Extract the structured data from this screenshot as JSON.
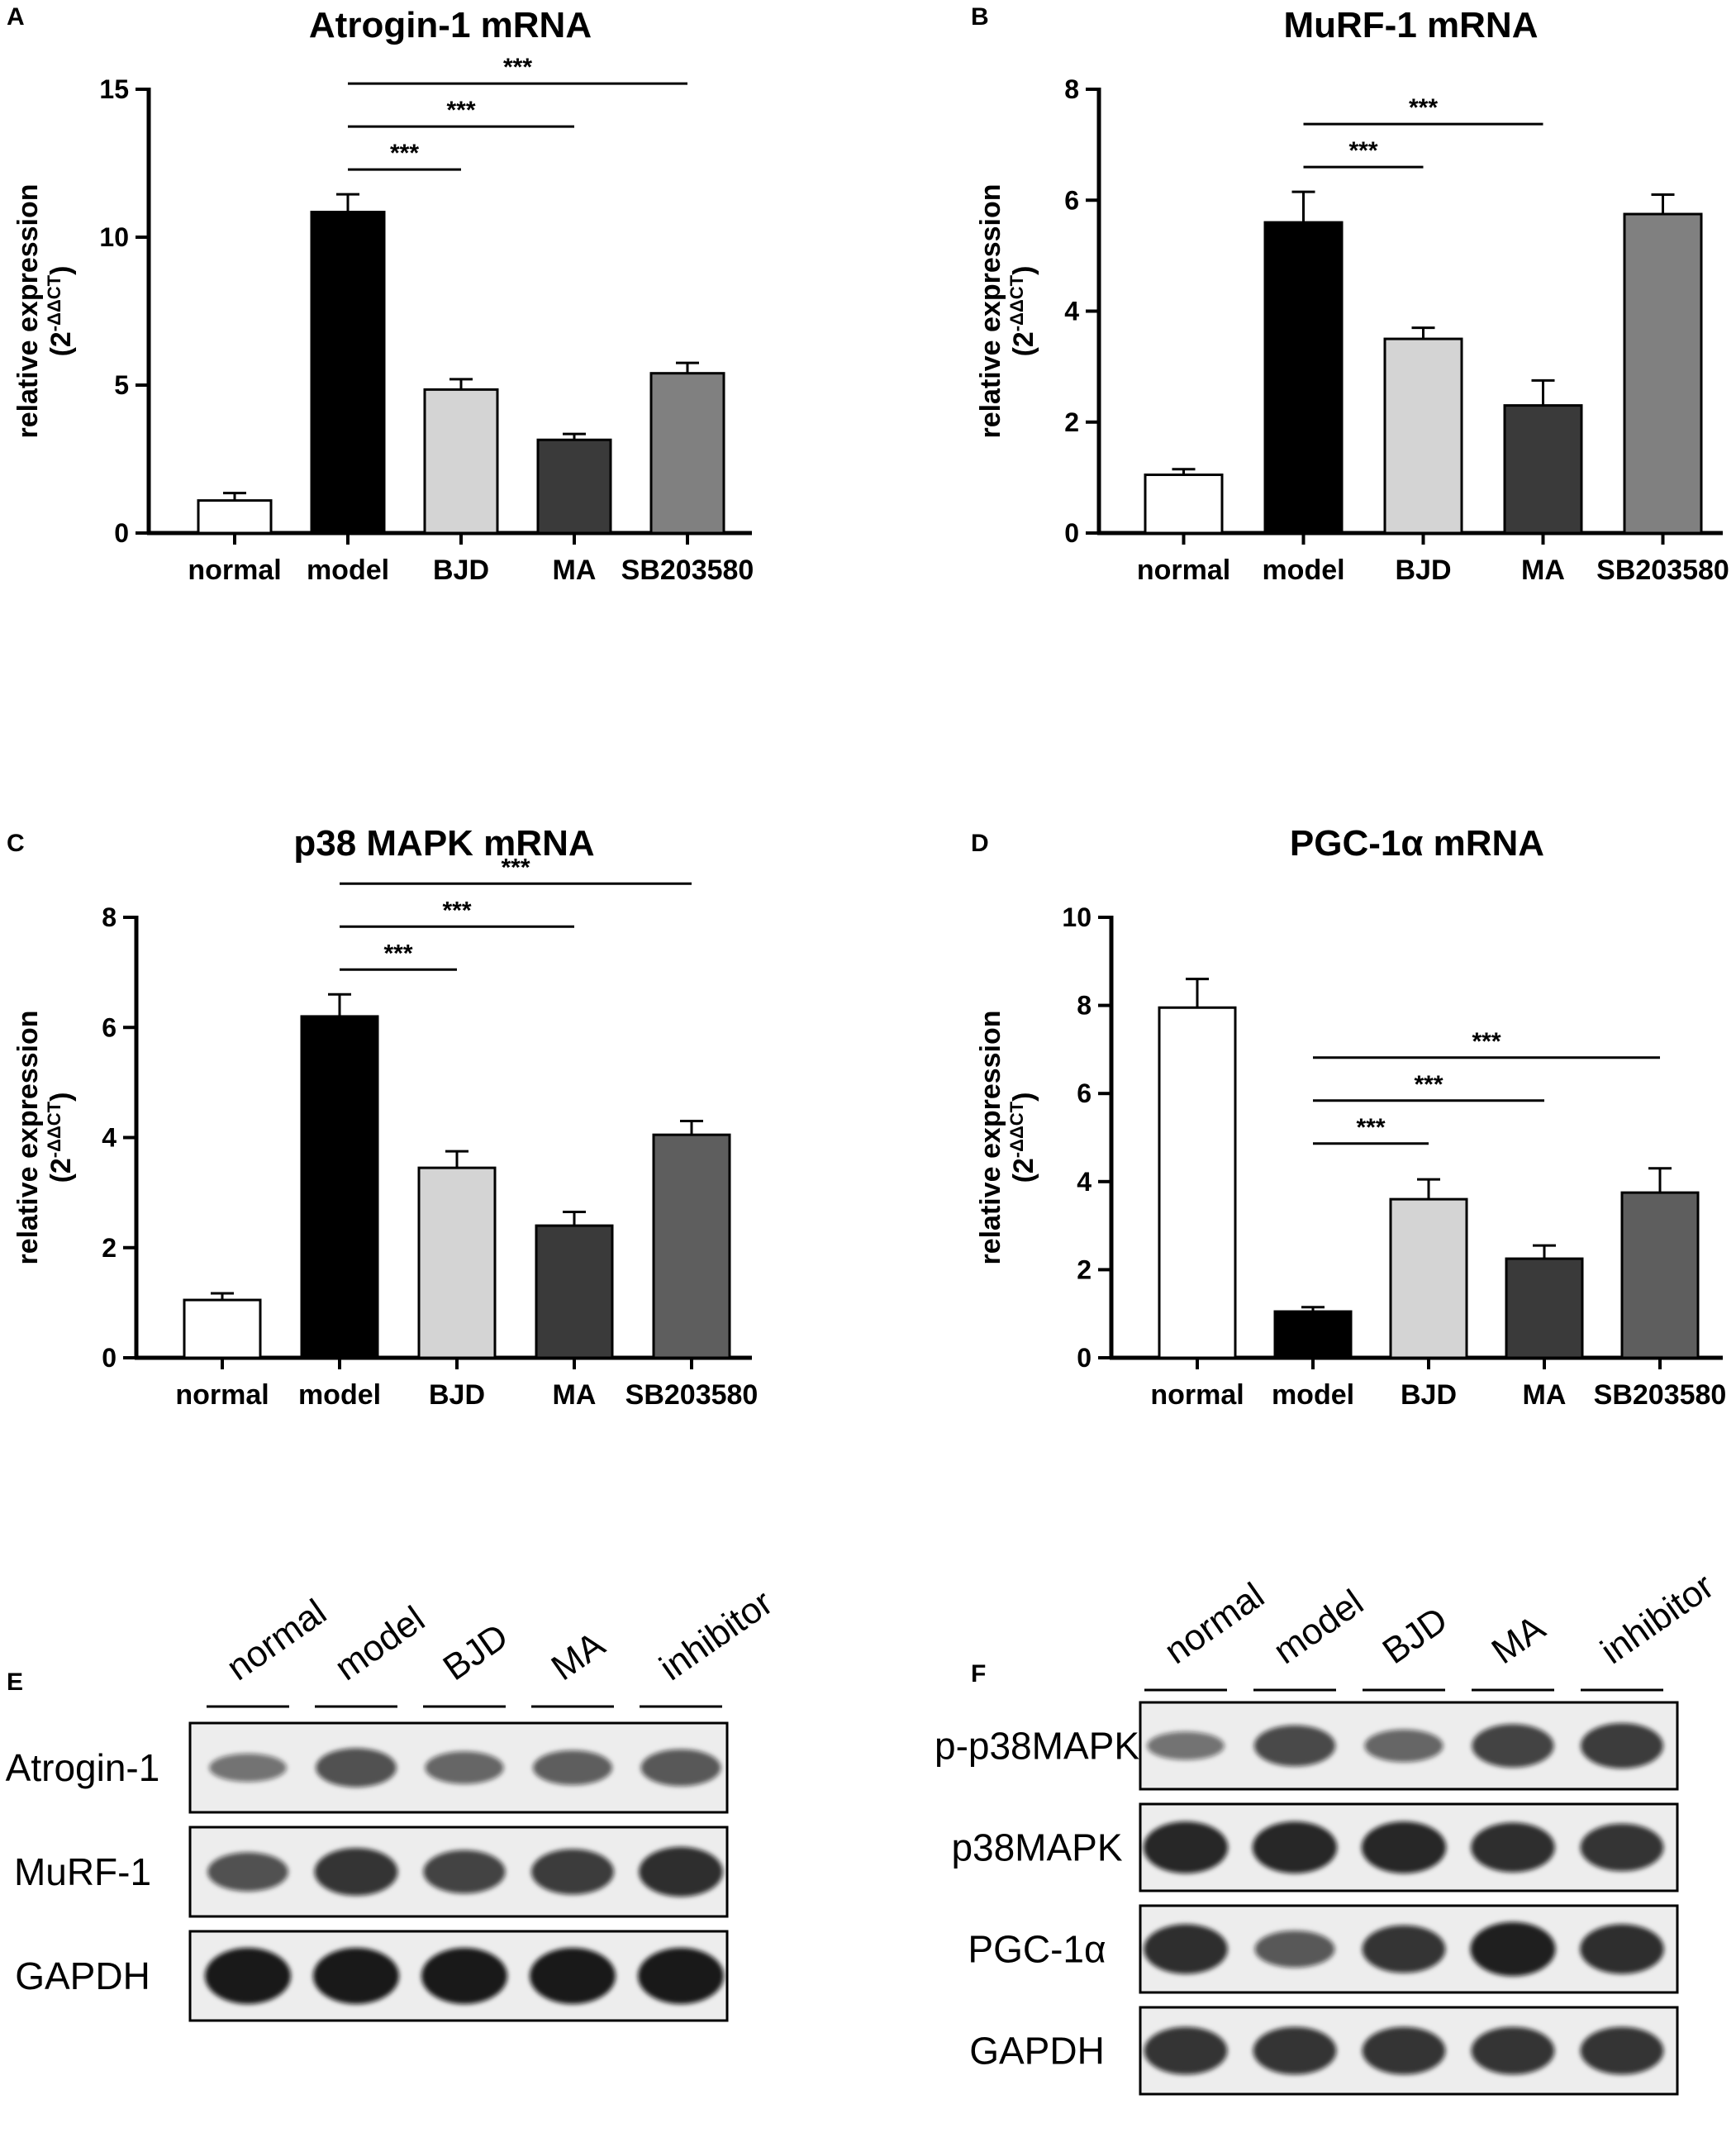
{
  "panels": {
    "A": {
      "letter": "A"
    },
    "B": {
      "letter": "B"
    },
    "C": {
      "letter": "C"
    },
    "D": {
      "letter": "D"
    },
    "E": {
      "letter": "E"
    },
    "F": {
      "letter": "F"
    }
  },
  "ylabel": {
    "line1": "relative expression",
    "line2_base": "(2",
    "line2_exp": "-ΔΔCT",
    "line2_close": ")"
  },
  "chart_data": [
    {
      "panel": "A",
      "type": "bar",
      "title": "Atrogin-1 mRNA",
      "categories": [
        "normal",
        "model",
        "BJD",
        "MA",
        "SB203580"
      ],
      "values": [
        1.1,
        10.85,
        4.85,
        3.15,
        5.4
      ],
      "errors": [
        0.25,
        0.6,
        0.35,
        0.2,
        0.35
      ],
      "colors": [
        "#ffffff",
        "#000000",
        "#d4d4d4",
        "#3a3a3a",
        "#808080"
      ],
      "ylim": [
        0,
        15
      ],
      "yticks": [
        0,
        5,
        10,
        15
      ],
      "ylabel": "relative expression (2-ΔΔCT)",
      "significance": [
        {
          "from": 1,
          "to": 2,
          "label": "***"
        },
        {
          "from": 1,
          "to": 3,
          "label": "***"
        },
        {
          "from": 1,
          "to": 4,
          "label": "***"
        }
      ]
    },
    {
      "panel": "B",
      "type": "bar",
      "title": "MuRF-1 mRNA",
      "categories": [
        "normal",
        "model",
        "BJD",
        "MA",
        "SB203580"
      ],
      "values": [
        1.05,
        5.6,
        3.5,
        2.3,
        5.75
      ],
      "errors": [
        0.1,
        0.55,
        0.2,
        0.45,
        0.35
      ],
      "colors": [
        "#ffffff",
        "#000000",
        "#d4d4d4",
        "#3a3a3a",
        "#808080"
      ],
      "ylim": [
        0,
        8
      ],
      "yticks": [
        0,
        2,
        4,
        6,
        8
      ],
      "ylabel": "relative expression (2-ΔΔCT)",
      "significance": [
        {
          "from": 1,
          "to": 2,
          "label": "***"
        },
        {
          "from": 1,
          "to": 3,
          "label": "***"
        }
      ]
    },
    {
      "panel": "C",
      "type": "bar",
      "title": "p38 MAPK mRNA",
      "categories": [
        "normal",
        "model",
        "BJD",
        "MA",
        "SB203580"
      ],
      "values": [
        1.05,
        6.2,
        3.45,
        2.4,
        4.05
      ],
      "errors": [
        0.12,
        0.4,
        0.3,
        0.25,
        0.25
      ],
      "colors": [
        "#ffffff",
        "#000000",
        "#d4d4d4",
        "#3a3a3a",
        "#5e5e5e"
      ],
      "ylim": [
        0,
        8
      ],
      "yticks": [
        0,
        2,
        4,
        6,
        8
      ],
      "ylabel": "relative expression (2-ΔΔCT)",
      "significance": [
        {
          "from": 1,
          "to": 2,
          "label": "***"
        },
        {
          "from": 1,
          "to": 3,
          "label": "***"
        },
        {
          "from": 1,
          "to": 4,
          "label": "***"
        }
      ]
    },
    {
      "panel": "D",
      "type": "bar",
      "title": "PGC-1α mRNA",
      "categories": [
        "normal",
        "model",
        "BJD",
        "MA",
        "SB203580"
      ],
      "values": [
        7.95,
        1.05,
        3.6,
        2.25,
        3.75
      ],
      "errors": [
        0.65,
        0.1,
        0.45,
        0.3,
        0.55
      ],
      "colors": [
        "#ffffff",
        "#000000",
        "#d4d4d4",
        "#3a3a3a",
        "#5e5e5e"
      ],
      "ylim": [
        0,
        10
      ],
      "yticks": [
        0,
        2,
        4,
        6,
        8,
        10
      ],
      "ylabel": "relative expression (2-ΔΔCT)",
      "significance": [
        {
          "from": 1,
          "to": 2,
          "label": "***"
        },
        {
          "from": 1,
          "to": 3,
          "label": "***"
        },
        {
          "from": 1,
          "to": 4,
          "label": "***"
        }
      ]
    }
  ],
  "blots": [
    {
      "panel": "E",
      "lanes": [
        "normal",
        "model",
        "BJD",
        "MA",
        "inhibitor"
      ],
      "rows": [
        {
          "label": "Atrogin-1",
          "intensity": [
            0.35,
            0.6,
            0.45,
            0.5,
            0.55
          ]
        },
        {
          "label": "MuRF-1",
          "intensity": [
            0.6,
            0.8,
            0.7,
            0.75,
            0.85
          ]
        },
        {
          "label": "GAPDH",
          "intensity": [
            1,
            1,
            1,
            1,
            1
          ]
        }
      ]
    },
    {
      "panel": "F",
      "lanes": [
        "normal",
        "model",
        "BJD",
        "MA",
        "inhibitor"
      ],
      "rows": [
        {
          "label": "p-p38MAPK",
          "intensity": [
            0.35,
            0.65,
            0.45,
            0.7,
            0.75
          ]
        },
        {
          "label": "p38MAPK",
          "intensity": [
            0.9,
            0.9,
            0.9,
            0.85,
            0.8
          ]
        },
        {
          "label": "PGC-1α",
          "intensity": [
            0.85,
            0.55,
            0.8,
            0.95,
            0.85
          ]
        },
        {
          "label": "GAPDH",
          "intensity": [
            0.8,
            0.8,
            0.8,
            0.8,
            0.8
          ]
        }
      ]
    }
  ]
}
